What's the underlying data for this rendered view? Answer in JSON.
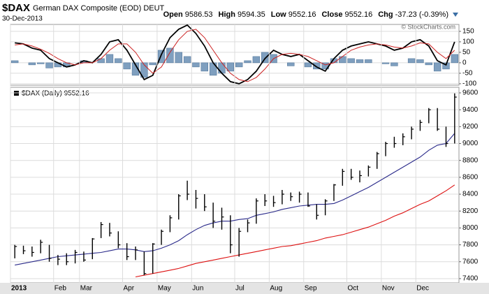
{
  "header": {
    "symbol": "$DAX",
    "name": "German DAX Composite (EOD) DEUT",
    "date": "30-Dec-2013",
    "quote": [
      {
        "label": "Open",
        "value": 9586.53
      },
      {
        "label": "High",
        "value": 9594.35
      },
      {
        "label": "Low",
        "value": 9552.16
      },
      {
        "label": "Close",
        "value": 9552.16
      },
      {
        "label": "Chg",
        "value": -37.23,
        "pct_label": "(-0.39%)"
      }
    ],
    "credit": "© StockCharts.com"
  },
  "chart_data": [
    {
      "type": "oscillator",
      "ylim": [
        -107,
        183
      ],
      "yticks": [
        150,
        100,
        50,
        0,
        -50,
        -100
      ],
      "grid": true,
      "series": [
        {
          "color": "#000000",
          "values": [
            95,
            90,
            70,
            60,
            20,
            0,
            -20,
            -10,
            10,
            0,
            40,
            100,
            110,
            60,
            -10,
            -80,
            -60,
            40,
            120,
            160,
            180,
            140,
            80,
            0,
            -50,
            -90,
            -100,
            -80,
            -40,
            20,
            60,
            40,
            30,
            40,
            10,
            -20,
            -40,
            20,
            60,
            80,
            90,
            100,
            90,
            80,
            60,
            70,
            100,
            110,
            80,
            10,
            -10,
            100
          ]
        },
        {
          "color": "#cc2222",
          "values": [
            85,
            90,
            80,
            65,
            45,
            20,
            0,
            -10,
            0,
            0,
            20,
            60,
            90,
            90,
            50,
            -10,
            -50,
            -20,
            50,
            110,
            150,
            160,
            120,
            60,
            0,
            -50,
            -80,
            -90,
            -70,
            -30,
            20,
            40,
            45,
            40,
            30,
            10,
            -10,
            0,
            30,
            60,
            75,
            85,
            90,
            85,
            75,
            70,
            80,
            95,
            90,
            50,
            20,
            60
          ]
        }
      ],
      "histogram": {
        "color": "#7f9fbf",
        "values": [
          10,
          0,
          -10,
          -5,
          -25,
          -20,
          -20,
          0,
          10,
          0,
          20,
          40,
          20,
          -30,
          -60,
          -70,
          -10,
          60,
          70,
          50,
          30,
          -20,
          -40,
          -60,
          -50,
          -40,
          -20,
          10,
          30,
          50,
          40,
          0,
          -15,
          0,
          -20,
          -30,
          -30,
          20,
          30,
          20,
          15,
          15,
          0,
          -5,
          -15,
          0,
          20,
          15,
          -10,
          -40,
          -30,
          40
        ]
      }
    },
    {
      "type": "hlc",
      "legend": "$DAX (Daily) 9552.16",
      "color": "#000000",
      "ylim": [
        7350,
        9666
      ],
      "yticks": [
        9600,
        9400,
        9200,
        9000,
        8800,
        8600,
        8400,
        8200,
        8000,
        7800,
        7600,
        7400
      ],
      "grid": true,
      "categories": [
        "2013",
        null,
        null,
        null,
        null,
        "Feb",
        null,
        null,
        "Mar",
        null,
        null,
        null,
        null,
        "Apr",
        null,
        null,
        null,
        "May",
        null,
        null,
        null,
        "Jun",
        null,
        null,
        null,
        null,
        "Jul",
        null,
        null,
        null,
        "Aug",
        null,
        null,
        null,
        "Sep",
        null,
        null,
        null,
        null,
        "Oct",
        null,
        null,
        null,
        "Nov",
        null,
        null,
        null,
        "Dec",
        null,
        null,
        null,
        null
      ],
      "high": [
        7800,
        7790,
        7780,
        7860,
        7800,
        7680,
        7700,
        7740,
        7720,
        7880,
        8070,
        8060,
        7960,
        7820,
        7780,
        7720,
        7820,
        7980,
        8150,
        8400,
        8560,
        8450,
        8400,
        8300,
        8240,
        8150,
        8000,
        8100,
        8350,
        8400,
        8380,
        8450,
        8420,
        8430,
        8420,
        8280,
        8340,
        8520,
        8700,
        8700,
        8680,
        8740,
        8900,
        9020,
        9080,
        9120,
        9200,
        9280,
        9420,
        9420,
        9200,
        9594
      ],
      "low": [
        7640,
        7690,
        7660,
        7700,
        7600,
        7560,
        7560,
        7580,
        7600,
        7630,
        7880,
        7900,
        7760,
        7620,
        7620,
        7440,
        7460,
        7800,
        7950,
        8100,
        8330,
        8230,
        8200,
        8000,
        7980,
        7700,
        7660,
        7950,
        8050,
        8260,
        8250,
        8280,
        8320,
        8300,
        8250,
        8100,
        8150,
        8320,
        8500,
        8570,
        8540,
        8610,
        8700,
        8850,
        8950,
        8980,
        9050,
        9150,
        9240,
        9150,
        8960,
        9000
      ],
      "close": [
        7780,
        7730,
        7710,
        7830,
        7640,
        7630,
        7600,
        7710,
        7620,
        7870,
        8040,
        7940,
        7800,
        7660,
        7740,
        7460,
        7810,
        7960,
        8120,
        8380,
        8400,
        8350,
        8250,
        8080,
        8130,
        7800,
        7960,
        8060,
        8320,
        8320,
        8300,
        8400,
        8370,
        8400,
        8260,
        8150,
        8320,
        8510,
        8670,
        8600,
        8620,
        8720,
        8880,
        9000,
        9000,
        9080,
        9170,
        9250,
        9400,
        9170,
        9000,
        9550
      ],
      "overlays": [
        {
          "color": "#2a2a8a",
          "values": [
            7560,
            7580,
            7600,
            7620,
            7640,
            7660,
            7670,
            7680,
            7690,
            7700,
            7710,
            7730,
            7750,
            7750,
            7740,
            7720,
            7730,
            7760,
            7800,
            7850,
            7920,
            7980,
            8030,
            8060,
            8080,
            8080,
            8100,
            8110,
            8150,
            8170,
            8190,
            8220,
            8240,
            8260,
            8270,
            8280,
            8280,
            8290,
            8330,
            8380,
            8430,
            8480,
            8540,
            8600,
            8660,
            8720,
            8780,
            8840,
            8920,
            8980,
            9000,
            9120
          ]
        },
        {
          "color": "#dd1111",
          "values": [
            null,
            null,
            null,
            null,
            null,
            null,
            null,
            null,
            null,
            null,
            null,
            null,
            null,
            null,
            7420,
            7440,
            7460,
            7480,
            7500,
            7520,
            7550,
            7580,
            7600,
            7620,
            7640,
            7660,
            7680,
            7700,
            7720,
            7740,
            7760,
            7780,
            7790,
            7810,
            7830,
            7850,
            7880,
            7900,
            7920,
            7950,
            7980,
            8010,
            8050,
            8090,
            8140,
            8180,
            8230,
            8280,
            8320,
            8380,
            8440,
            8510
          ]
        }
      ]
    }
  ]
}
